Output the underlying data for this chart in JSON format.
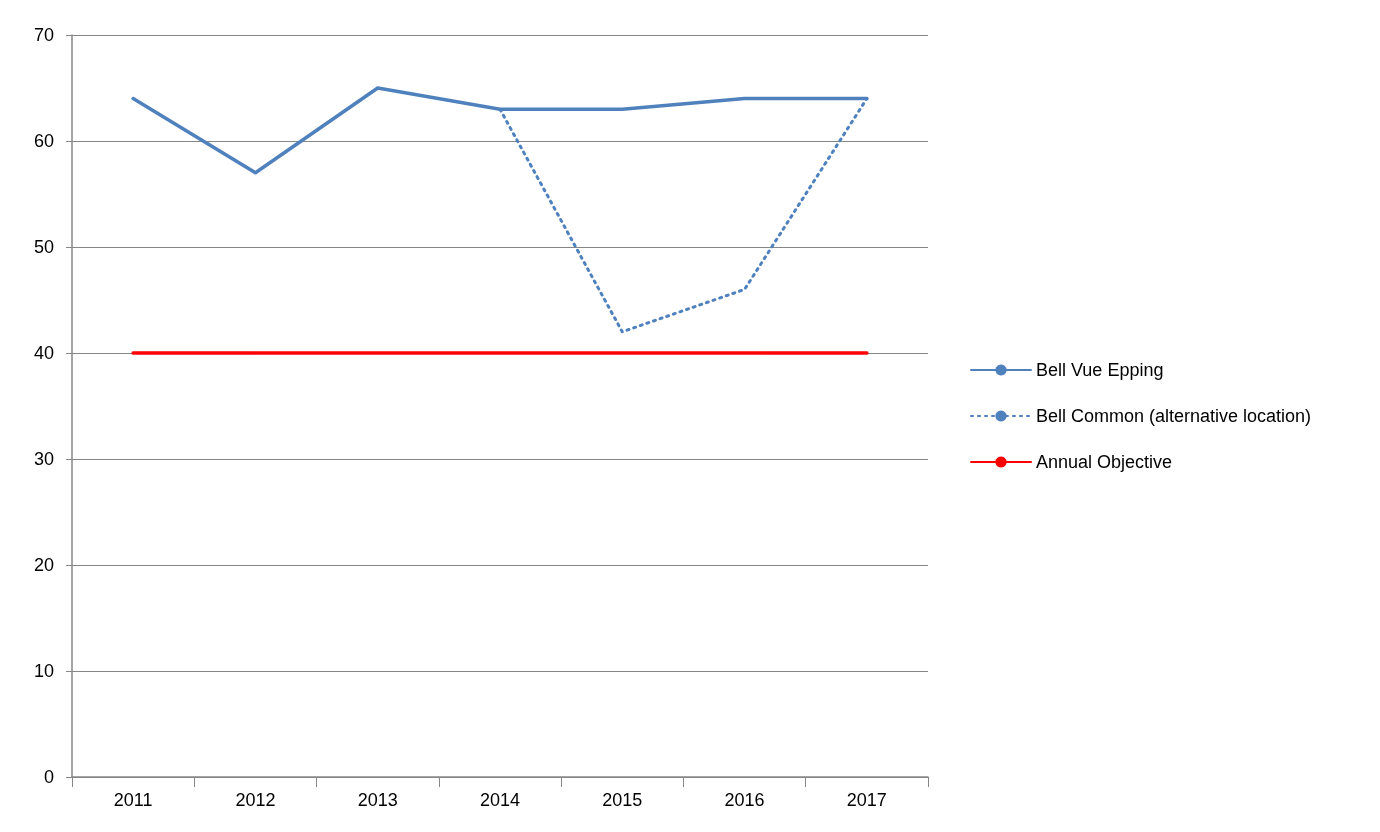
{
  "chart_data": {
    "type": "line",
    "categories": [
      "2011",
      "2012",
      "2013",
      "2014",
      "2015",
      "2016",
      "2017"
    ],
    "series": [
      {
        "name": "Bell Vue Epping",
        "color": "#4f81bd",
        "line_style": "solid",
        "values": [
          64,
          57,
          65,
          63,
          63,
          64,
          64
        ]
      },
      {
        "name": "Bell Common (alternative location)",
        "color": "#4f81bd",
        "line_style": "dotted",
        "values": [
          null,
          null,
          null,
          63,
          42,
          46,
          64
        ]
      },
      {
        "name": "Annual Objective",
        "color": "#ff0000",
        "line_style": "solid",
        "values": [
          40,
          40,
          40,
          40,
          40,
          40,
          40
        ]
      }
    ],
    "ylim": [
      0,
      70
    ],
    "yticks": [
      0,
      10,
      20,
      30,
      40,
      50,
      60,
      70
    ],
    "grid": "y",
    "legend": "right",
    "marker": "none"
  }
}
